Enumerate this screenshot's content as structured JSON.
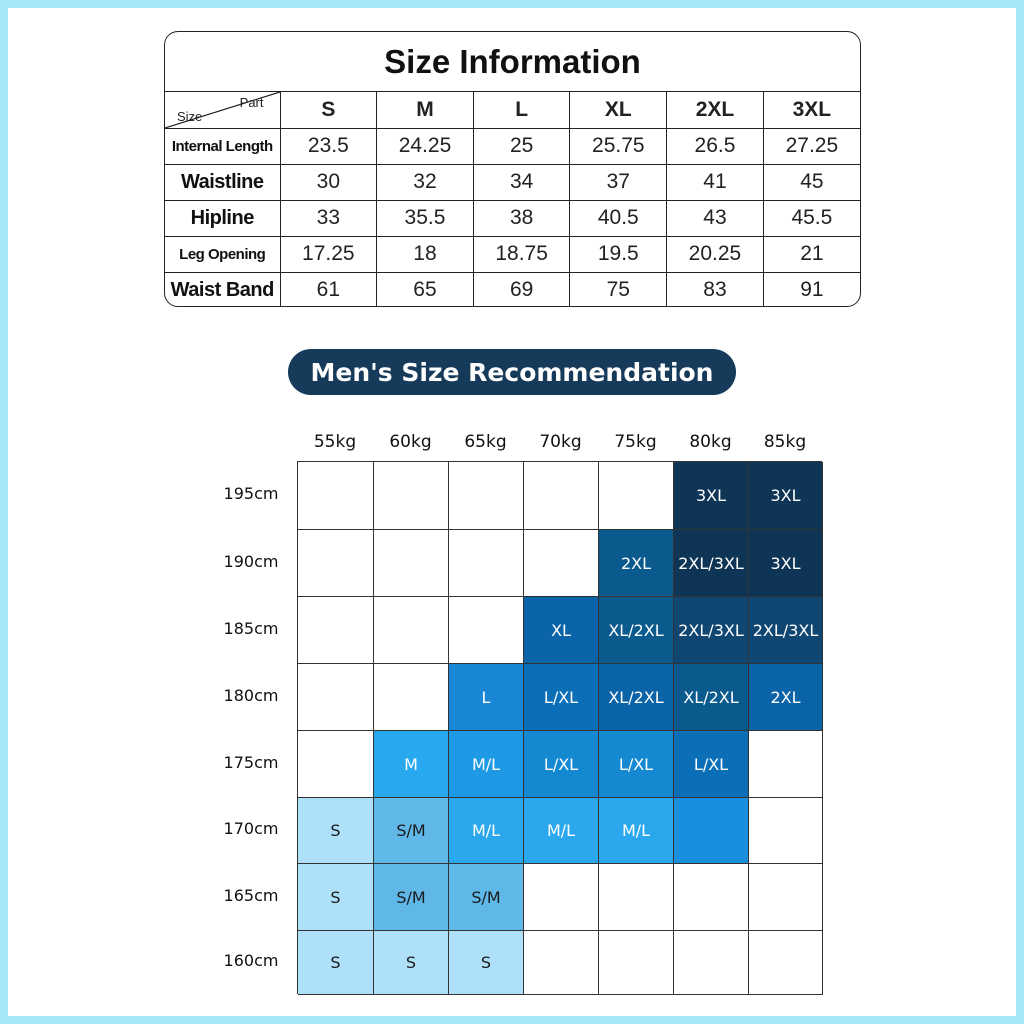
{
  "size_info": {
    "title": "Size Information",
    "corner_part": "Part",
    "corner_size": "Size",
    "sizes": [
      "S",
      "M",
      "L",
      "XL",
      "2XL",
      "3XL"
    ],
    "rows": [
      {
        "label": "Internal Length",
        "style": "sm",
        "values": [
          "23.5",
          "24.25",
          "25",
          "25.75",
          "26.5",
          "27.25"
        ]
      },
      {
        "label": "Waistline",
        "style": "lg",
        "values": [
          "30",
          "32",
          "34",
          "37",
          "41",
          "45"
        ]
      },
      {
        "label": "Hipline",
        "style": "lg",
        "values": [
          "33",
          "35.5",
          "38",
          "40.5",
          "43",
          "45.5"
        ]
      },
      {
        "label": "Leg Opening",
        "style": "sm",
        "values": [
          "17.25",
          "18",
          "18.75",
          "19.5",
          "20.25",
          "21"
        ]
      },
      {
        "label": "Waist Band",
        "style": "lg",
        "values": [
          "61",
          "65",
          "69",
          "75",
          "83",
          "91"
        ]
      }
    ]
  },
  "recommendation": {
    "title": "Men's Size Recommendation",
    "weights": [
      "55kg",
      "60kg",
      "65kg",
      "70kg",
      "75kg",
      "80kg",
      "85kg"
    ],
    "heights": [
      "195cm",
      "190cm",
      "185cm",
      "180cm",
      "175cm",
      "170cm",
      "165cm",
      "160cm"
    ],
    "cells": [
      [
        "",
        "",
        "",
        "",
        "",
        "3XL",
        "3XL"
      ],
      [
        "",
        "",
        "",
        "",
        "2XL",
        "2XL/3XL",
        "3XL"
      ],
      [
        "",
        "",
        "",
        "XL",
        "XL/2XL",
        "2XL/3XL",
        "2XL/3XL"
      ],
      [
        "",
        "",
        "L",
        "L/XL",
        "XL/2XL",
        "XL/2XL",
        "2XL"
      ],
      [
        "",
        "M",
        "M/L",
        "L/XL",
        "L/XL",
        "L/XL",
        ""
      ],
      [
        "S",
        "S/M",
        "M/L",
        "M/L",
        "M/L",
        "",
        ""
      ],
      [
        "S",
        "S/M",
        "S/M",
        "",
        "",
        "",
        ""
      ],
      [
        "S",
        "S",
        "S",
        "",
        "",
        "",
        ""
      ]
    ],
    "colors": [
      [
        "#ffffff",
        "#ffffff",
        "#ffffff",
        "#ffffff",
        "#ffffff",
        "#0f3556",
        "#0f3556"
      ],
      [
        "#ffffff",
        "#ffffff",
        "#ffffff",
        "#ffffff",
        "#0b5a8e",
        "#0f3556",
        "#0f3556"
      ],
      [
        "#ffffff",
        "#ffffff",
        "#ffffff",
        "#0b64a8",
        "#0b5a8e",
        "#0f4672",
        "#0f4672"
      ],
      [
        "#ffffff",
        "#ffffff",
        "#1a87d6",
        "#0b6fb8",
        "#0b64a8",
        "#0b5a8e",
        "#0b64a8"
      ],
      [
        "#ffffff",
        "#28a9ef",
        "#1d99e6",
        "#1588d2",
        "#1588d2",
        "#0b6fb8",
        "#ffffff"
      ],
      [
        "#aee0f9",
        "#5fb8e8",
        "#2ba7ee",
        "#2ba7ee",
        "#2ba7ee",
        "#1a8fde",
        "#ffffff"
      ],
      [
        "#aee0f9",
        "#5fb8e8",
        "#5fb8e8",
        "#ffffff",
        "#ffffff",
        "#ffffff",
        "#ffffff"
      ],
      [
        "#aee0f9",
        "#aee0f9",
        "#aee0f9",
        "#ffffff",
        "#ffffff",
        "#ffffff",
        "#ffffff"
      ]
    ]
  }
}
